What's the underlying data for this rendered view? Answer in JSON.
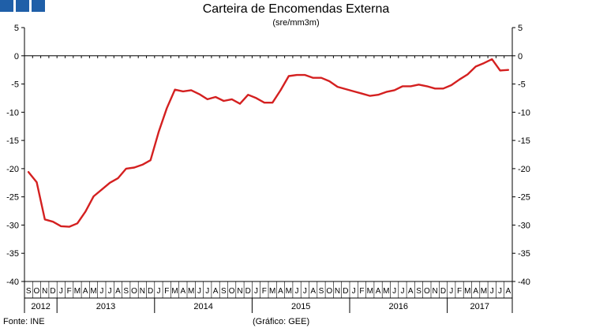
{
  "header": {
    "logo_icon": "institution-logo-icon"
  },
  "footer": {
    "source": "Fonte: INE",
    "credit": "(Gráfico: GEE)"
  },
  "chart_data": {
    "type": "line",
    "title": "Carteira de Encomendas Externa",
    "subtitle": "(sre/mm3m)",
    "xlabel": "",
    "ylabel": "",
    "ylim": [
      -40,
      5
    ],
    "yticks": [
      5,
      0,
      -5,
      -10,
      -15,
      -20,
      -25,
      -30,
      -35,
      -40
    ],
    "grid": false,
    "line_color": "#d42020",
    "x": [
      "2012-09",
      "2012-10",
      "2012-11",
      "2012-12",
      "2013-01",
      "2013-02",
      "2013-03",
      "2013-04",
      "2013-05",
      "2013-06",
      "2013-07",
      "2013-08",
      "2013-09",
      "2013-10",
      "2013-11",
      "2013-12",
      "2014-01",
      "2014-02",
      "2014-03",
      "2014-04",
      "2014-05",
      "2014-06",
      "2014-07",
      "2014-08",
      "2014-09",
      "2014-10",
      "2014-11",
      "2014-12",
      "2015-01",
      "2015-02",
      "2015-03",
      "2015-04",
      "2015-05",
      "2015-06",
      "2015-07",
      "2015-08",
      "2015-09",
      "2015-10",
      "2015-11",
      "2015-12",
      "2016-01",
      "2016-02",
      "2016-03",
      "2016-04",
      "2016-05",
      "2016-06",
      "2016-07",
      "2016-08",
      "2016-09",
      "2016-10",
      "2016-11",
      "2016-12",
      "2017-01",
      "2017-02",
      "2017-03",
      "2017-04",
      "2017-05",
      "2017-06",
      "2017-07",
      "2017-08"
    ],
    "month_labels": [
      "S",
      "O",
      "N",
      "D",
      "J",
      "F",
      "M",
      "A",
      "M",
      "J",
      "J",
      "A",
      "S",
      "O",
      "N",
      "D",
      "J",
      "F",
      "M",
      "A",
      "M",
      "J",
      "J",
      "A",
      "S",
      "O",
      "N",
      "D",
      "J",
      "F",
      "M",
      "A",
      "M",
      "J",
      "J",
      "A",
      "S",
      "O",
      "N",
      "D",
      "J",
      "F",
      "M",
      "A",
      "M",
      "J",
      "J",
      "A",
      "S",
      "O",
      "N",
      "D",
      "J",
      "F",
      "M",
      "A",
      "M",
      "J",
      "J",
      "A"
    ],
    "years": [
      {
        "label": "2012",
        "start": 0,
        "end": 3
      },
      {
        "label": "2013",
        "start": 4,
        "end": 15
      },
      {
        "label": "2014",
        "start": 16,
        "end": 27
      },
      {
        "label": "2015",
        "start": 28,
        "end": 39
      },
      {
        "label": "2016",
        "start": 40,
        "end": 51
      },
      {
        "label": "2017",
        "start": 52,
        "end": 59
      }
    ],
    "series": [
      {
        "values": [
          -20.6,
          -22.4,
          -29.0,
          -29.4,
          -30.2,
          -30.3,
          -29.7,
          -27.6,
          -24.9,
          -23.7,
          -22.5,
          -21.7,
          -20.0,
          -19.8,
          -19.3,
          -18.5,
          -13.5,
          -9.3,
          -6.0,
          -6.3,
          -6.1,
          -6.8,
          -7.7,
          -7.3,
          -8.0,
          -7.7,
          -8.5,
          -6.9,
          -7.5,
          -8.3,
          -8.3,
          -6.1,
          -3.6,
          -3.4,
          -3.4,
          -3.9,
          -3.9,
          -4.5,
          -5.5,
          -5.9,
          -6.3,
          -6.7,
          -7.1,
          -6.9,
          -6.4,
          -6.1,
          -5.4,
          -5.4,
          -5.1,
          -5.4,
          -5.8,
          -5.8,
          -5.2,
          -4.2,
          -3.3,
          -1.9,
          -1.3,
          -0.6,
          -2.6,
          -2.5
        ]
      }
    ]
  }
}
